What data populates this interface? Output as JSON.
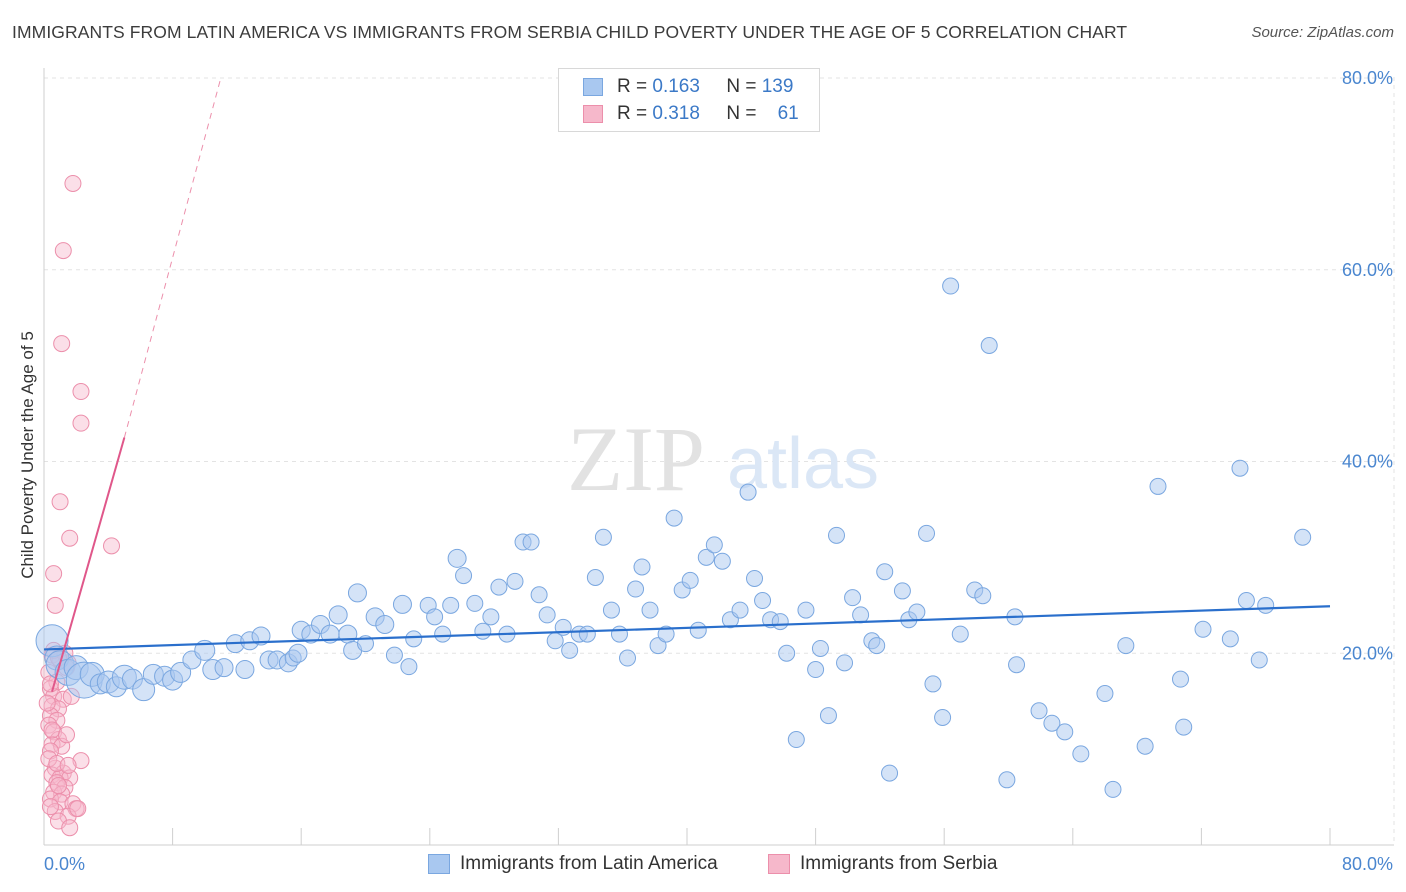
{
  "title": "IMMIGRANTS FROM LATIN AMERICA VS IMMIGRANTS FROM SERBIA CHILD POVERTY UNDER THE AGE OF 5 CORRELATION CHART",
  "source": "Source: ZipAtlas.com",
  "watermark": {
    "zip": "ZIP",
    "atlas": "atlas"
  },
  "legend": {
    "rows": [
      {
        "r_label": "R =",
        "r_value": "0.163",
        "n_label": "N =",
        "n_value": "139"
      },
      {
        "r_label": "R =",
        "r_value": "0.318",
        "n_label": "N =",
        "n_value": "61"
      }
    ]
  },
  "colors": {
    "blue_fill": "#a9c8f0",
    "blue_stroke": "#7aa7e0",
    "blue_line": "#2a6fcc",
    "pink_fill": "#f6b8cb",
    "pink_stroke": "#ec8fab",
    "pink_line": "#e0578a",
    "axis_text": "#4a86cf",
    "grid": "#e3e3e3"
  },
  "chart_data": {
    "type": "scatter",
    "title": "IMMIGRANTS FROM LATIN AMERICA VS IMMIGRANTS FROM SERBIA CHILD POVERTY UNDER THE AGE OF 5 CORRELATION CHART",
    "xlabel": "",
    "ylabel": "Child Poverty Under the Age of 5",
    "xlim": [
      0,
      80
    ],
    "ylim": [
      0,
      80
    ],
    "x_tick_labels": [
      "0.0%",
      "80.0%"
    ],
    "y_tick_labels": [
      "20.0%",
      "40.0%",
      "60.0%",
      "80.0%"
    ],
    "y_ticks": [
      20,
      40,
      60,
      80
    ],
    "grid": true,
    "legend_position": "top-center",
    "series": [
      {
        "name": "Immigrants from Latin America",
        "R": 0.163,
        "N": 139,
        "trend": {
          "x0": 0,
          "y0": 20.4,
          "x1": 80,
          "y1": 24.9
        },
        "points": [
          [
            0.5,
            21.3,
            16
          ],
          [
            0.8,
            19.5,
            12
          ],
          [
            1.0,
            18.8,
            14
          ],
          [
            1.5,
            18.0,
            13
          ],
          [
            2.0,
            18.5,
            12
          ],
          [
            2.5,
            17.2,
            18
          ],
          [
            3.0,
            17.8,
            12
          ],
          [
            3.5,
            16.8,
            10
          ],
          [
            4.0,
            17.0,
            11
          ],
          [
            4.5,
            16.5,
            10
          ],
          [
            5.0,
            17.5,
            12
          ],
          [
            5.5,
            17.3,
            10
          ],
          [
            6.2,
            16.2,
            11
          ],
          [
            6.8,
            17.8,
            10
          ],
          [
            7.5,
            17.6,
            10
          ],
          [
            8.0,
            17.2,
            10
          ],
          [
            8.5,
            18.0,
            10
          ],
          [
            9.2,
            19.3,
            9
          ],
          [
            10.0,
            20.3,
            10
          ],
          [
            10.5,
            18.3,
            10
          ],
          [
            11.2,
            18.5,
            9
          ],
          [
            11.9,
            21.0,
            9
          ],
          [
            12.5,
            18.3,
            9
          ],
          [
            12.8,
            21.3,
            9
          ],
          [
            13.5,
            21.8,
            9
          ],
          [
            14.0,
            19.3,
            9
          ],
          [
            14.5,
            19.3,
            9
          ],
          [
            15.2,
            19.0,
            9
          ],
          [
            15.5,
            19.5,
            8
          ],
          [
            15.8,
            20.0,
            9
          ],
          [
            16.0,
            22.4,
            9
          ],
          [
            16.6,
            22.0,
            9
          ],
          [
            17.2,
            23.0,
            9
          ],
          [
            17.8,
            22.0,
            9
          ],
          [
            18.3,
            24.0,
            9
          ],
          [
            18.9,
            22.0,
            9
          ],
          [
            19.2,
            20.3,
            9
          ],
          [
            19.5,
            26.3,
            9
          ],
          [
            20.0,
            21.0,
            8
          ],
          [
            20.6,
            23.8,
            9
          ],
          [
            21.2,
            23.0,
            9
          ],
          [
            21.8,
            19.8,
            8
          ],
          [
            22.3,
            25.1,
            9
          ],
          [
            22.7,
            18.6,
            8
          ],
          [
            23.0,
            21.5,
            8
          ],
          [
            23.9,
            25.0,
            8
          ],
          [
            24.3,
            23.8,
            8
          ],
          [
            24.8,
            22.0,
            8
          ],
          [
            25.3,
            25.0,
            8
          ],
          [
            25.7,
            29.9,
            9
          ],
          [
            26.1,
            28.1,
            8
          ],
          [
            26.8,
            25.2,
            8
          ],
          [
            27.3,
            22.3,
            8
          ],
          [
            27.8,
            23.8,
            8
          ],
          [
            28.3,
            26.9,
            8
          ],
          [
            28.8,
            22.0,
            8
          ],
          [
            29.3,
            27.5,
            8
          ],
          [
            29.8,
            31.6,
            8
          ],
          [
            30.3,
            31.6,
            8
          ],
          [
            30.8,
            26.1,
            8
          ],
          [
            31.3,
            24.0,
            8
          ],
          [
            31.8,
            21.3,
            8
          ],
          [
            32.3,
            22.7,
            8
          ],
          [
            32.7,
            20.3,
            8
          ],
          [
            33.3,
            22.0,
            8
          ],
          [
            33.8,
            22.0,
            8
          ],
          [
            34.3,
            27.9,
            8
          ],
          [
            34.8,
            32.1,
            8
          ],
          [
            35.3,
            24.5,
            8
          ],
          [
            35.8,
            22.0,
            8
          ],
          [
            36.3,
            19.5,
            8
          ],
          [
            36.8,
            26.7,
            8
          ],
          [
            37.2,
            29.0,
            8
          ],
          [
            37.7,
            24.5,
            8
          ],
          [
            38.2,
            20.8,
            8
          ],
          [
            38.7,
            22.0,
            8
          ],
          [
            39.2,
            34.1,
            8
          ],
          [
            39.7,
            26.6,
            8
          ],
          [
            40.2,
            27.6,
            8
          ],
          [
            40.7,
            22.4,
            8
          ],
          [
            41.2,
            30.0,
            8
          ],
          [
            41.7,
            31.3,
            8
          ],
          [
            42.2,
            29.6,
            8
          ],
          [
            42.7,
            23.5,
            8
          ],
          [
            43.3,
            24.5,
            8
          ],
          [
            43.8,
            36.8,
            8
          ],
          [
            44.2,
            27.8,
            8
          ],
          [
            44.7,
            25.5,
            8
          ],
          [
            45.2,
            23.5,
            8
          ],
          [
            45.8,
            23.3,
            8
          ],
          [
            46.2,
            20.0,
            8
          ],
          [
            46.8,
            11.0,
            8
          ],
          [
            47.4,
            24.5,
            8
          ],
          [
            48.0,
            18.3,
            8
          ],
          [
            48.3,
            20.5,
            8
          ],
          [
            48.8,
            13.5,
            8
          ],
          [
            49.3,
            32.3,
            8
          ],
          [
            49.8,
            19.0,
            8
          ],
          [
            50.3,
            25.8,
            8
          ],
          [
            50.8,
            24.0,
            8
          ],
          [
            51.5,
            21.3,
            8
          ],
          [
            51.8,
            20.8,
            8
          ],
          [
            52.3,
            28.5,
            8
          ],
          [
            52.6,
            7.5,
            8
          ],
          [
            53.4,
            26.5,
            8
          ],
          [
            53.8,
            23.5,
            8
          ],
          [
            54.3,
            24.3,
            8
          ],
          [
            54.9,
            32.5,
            8
          ],
          [
            55.3,
            16.8,
            8
          ],
          [
            55.9,
            13.3,
            8
          ],
          [
            56.4,
            58.3,
            8
          ],
          [
            57.0,
            22.0,
            8
          ],
          [
            57.9,
            26.6,
            8
          ],
          [
            58.4,
            26.0,
            8
          ],
          [
            58.8,
            52.1,
            8
          ],
          [
            59.9,
            6.8,
            8
          ],
          [
            60.4,
            23.8,
            8
          ],
          [
            60.5,
            18.8,
            8
          ],
          [
            61.9,
            14.0,
            8
          ],
          [
            62.7,
            12.7,
            8
          ],
          [
            63.5,
            11.8,
            8
          ],
          [
            64.5,
            9.5,
            8
          ],
          [
            66.0,
            15.8,
            8
          ],
          [
            66.5,
            5.8,
            8
          ],
          [
            67.3,
            20.8,
            8
          ],
          [
            68.5,
            10.3,
            8
          ],
          [
            69.3,
            37.4,
            8
          ],
          [
            70.7,
            17.3,
            8
          ],
          [
            70.9,
            12.3,
            8
          ],
          [
            72.1,
            22.5,
            8
          ],
          [
            73.8,
            21.5,
            8
          ],
          [
            74.4,
            39.3,
            8
          ],
          [
            74.8,
            25.5,
            8
          ],
          [
            75.6,
            19.3,
            8
          ],
          [
            76.0,
            25.0,
            8
          ],
          [
            78.3,
            32.1,
            8
          ]
        ]
      },
      {
        "name": "Immigrants from Serbia",
        "R": 0.318,
        "N": 61,
        "trend": {
          "x0": 0.5,
          "y0": 16.0,
          "x1": 5.0,
          "y1": 42.5,
          "dashed_x1": 11.0,
          "dashed_y1": 80.0
        },
        "points": [
          [
            1.8,
            69.0
          ],
          [
            1.2,
            62.0
          ],
          [
            1.1,
            52.3
          ],
          [
            2.3,
            47.3
          ],
          [
            2.3,
            44.0
          ],
          [
            1.0,
            35.8
          ],
          [
            1.6,
            32.0
          ],
          [
            4.2,
            31.2
          ],
          [
            0.6,
            28.3
          ],
          [
            0.7,
            25.0
          ],
          [
            0.5,
            19.8
          ],
          [
            1.0,
            19.3
          ],
          [
            1.5,
            19.0
          ],
          [
            1.4,
            18.5
          ],
          [
            0.3,
            18.0
          ],
          [
            0.8,
            17.0
          ],
          [
            0.4,
            16.3
          ],
          [
            0.6,
            15.5
          ],
          [
            1.2,
            15.2
          ],
          [
            0.5,
            14.5
          ],
          [
            0.9,
            14.2
          ],
          [
            0.4,
            13.5
          ],
          [
            0.8,
            13.0
          ],
          [
            0.3,
            12.5
          ],
          [
            0.6,
            11.8
          ],
          [
            0.9,
            11.0
          ],
          [
            0.5,
            10.5
          ],
          [
            1.1,
            10.3
          ],
          [
            0.4,
            9.8
          ],
          [
            2.3,
            8.8
          ],
          [
            0.7,
            8.0
          ],
          [
            1.2,
            7.5
          ],
          [
            0.5,
            7.3
          ],
          [
            1.0,
            7.0
          ],
          [
            1.6,
            7.0
          ],
          [
            0.8,
            6.5
          ],
          [
            1.3,
            6.0
          ],
          [
            0.6,
            5.5
          ],
          [
            1.1,
            5.3
          ],
          [
            0.4,
            4.8
          ],
          [
            1.0,
            4.5
          ],
          [
            1.8,
            4.3
          ],
          [
            2.0,
            3.8
          ],
          [
            0.7,
            3.5
          ],
          [
            1.5,
            3.0
          ],
          [
            0.9,
            2.5
          ],
          [
            1.6,
            1.8
          ],
          [
            0.6,
            20.3
          ],
          [
            1.3,
            20.0
          ],
          [
            0.9,
            19.5
          ],
          [
            2.1,
            3.8
          ],
          [
            0.4,
            16.8
          ],
          [
            1.7,
            15.5
          ],
          [
            0.2,
            14.8
          ],
          [
            0.5,
            12.0
          ],
          [
            1.4,
            11.5
          ],
          [
            0.3,
            9.0
          ],
          [
            0.8,
            8.5
          ],
          [
            1.5,
            8.3
          ],
          [
            0.9,
            6.2
          ],
          [
            0.4,
            4.0
          ]
        ]
      }
    ]
  }
}
